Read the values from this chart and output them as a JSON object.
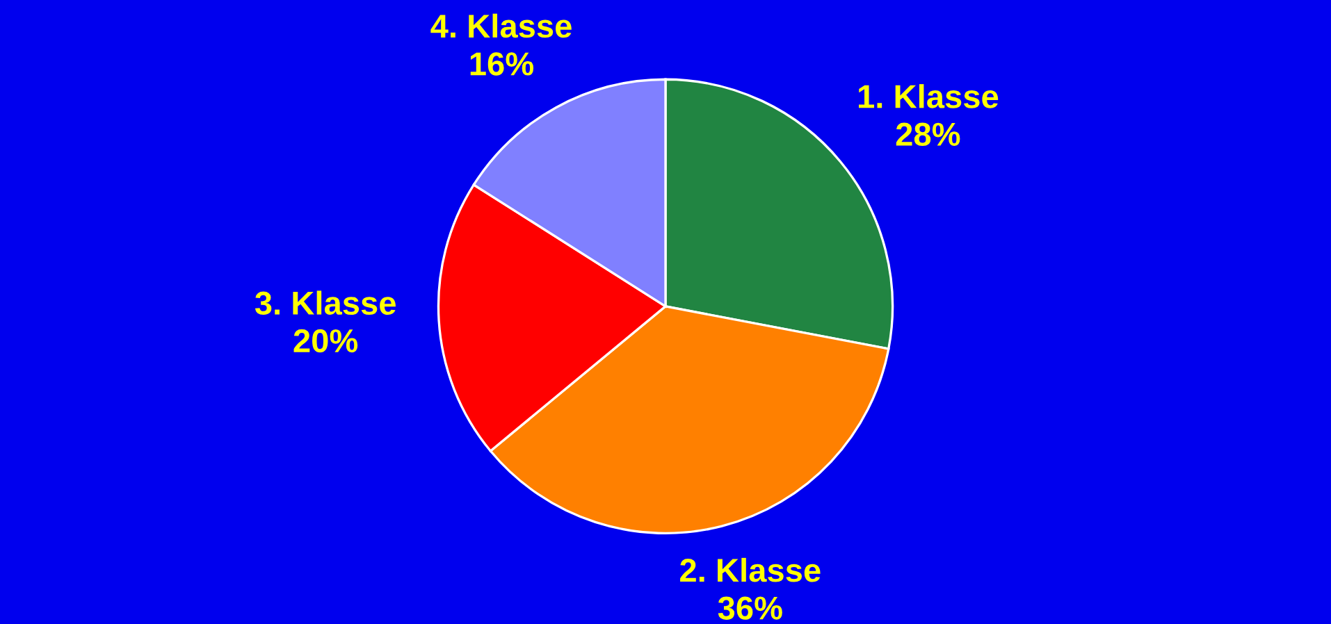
{
  "chart_data": {
    "type": "pie",
    "categories": [
      "1. Klasse",
      "2. Klasse",
      "3. Klasse",
      "4. Klasse"
    ],
    "values": [
      28,
      36,
      20,
      16
    ],
    "value_labels": [
      "28%",
      "36%",
      "20%",
      "16%"
    ],
    "colors": [
      "#218542",
      "#ff8000",
      "#ff0000",
      "#8080ff"
    ]
  }
}
